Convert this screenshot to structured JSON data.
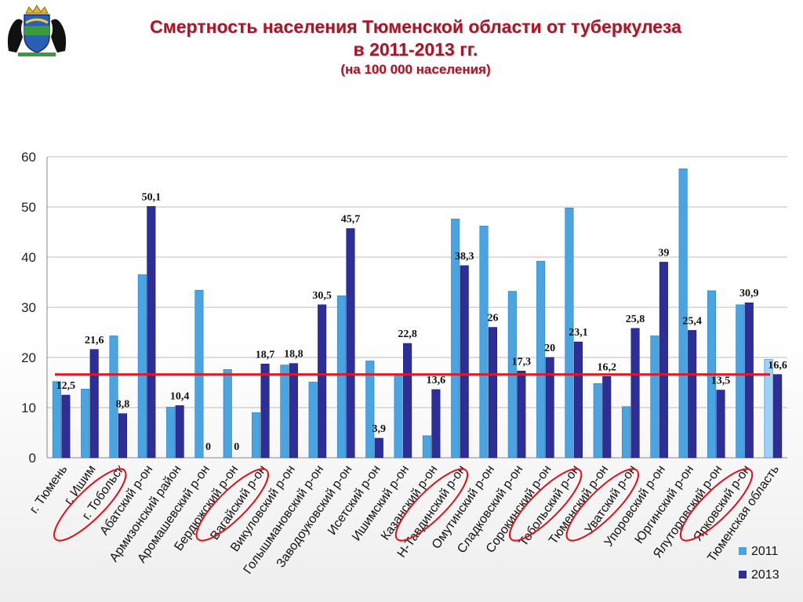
{
  "header": {
    "title_line1": "Смертность населения Тюменской области от туберкулеза",
    "title_line2": "в 2011-2013 гг.",
    "subtitle": "(на 100 000 населения)"
  },
  "emblem": {
    "icon": "tyumen-region-coat-of-arms"
  },
  "colors": {
    "series_2011": "#4ba3e0",
    "series_2013": "#2e2f96",
    "highlight_2011": "#9fd0f5",
    "average_line": "#e8141e",
    "highlight_circle": "#d9141e",
    "average_label": "#c0141e"
  },
  "chart_data": {
    "type": "bar",
    "categories": [
      "г. Тюмень",
      "г. Ишим",
      "г. Тобольск",
      "Абатский р-он",
      "Армизонский район",
      "Аромашевский р-он",
      "Бердюжский р-он",
      "Вагайский р-он",
      "Викуловский р-он",
      "Голышмановский р-он",
      "Заводоуковский р-он",
      "Исетский р-он",
      "Ишимский р-он",
      "Казанский р-он",
      "Н-Тавдинский р-он",
      "Омутинский р-он",
      "Сладковский р-он",
      "Сорокинский р-он",
      "Тобольский р-он",
      "Тюменский р-он",
      "Уватский р-он",
      "Упоровский р-он",
      "Юргинский р-он",
      "Ялуторовский р-он",
      "Ярковский р-он",
      "Тюменская область"
    ],
    "series": [
      {
        "name": "2011",
        "values": [
          15.2,
          13.7,
          24.3,
          36.5,
          10.1,
          33.4,
          17.6,
          9.0,
          18.5,
          15.1,
          32.3,
          19.3,
          16.3,
          4.4,
          47.6,
          46.2,
          33.2,
          39.2,
          49.8,
          14.8,
          10.2,
          24.3,
          57.6,
          33.3,
          30.5,
          19.6
        ]
      },
      {
        "name": "2013",
        "values": [
          12.5,
          21.6,
          8.8,
          50.1,
          10.4,
          0,
          0,
          18.7,
          18.8,
          30.5,
          45.7,
          3.9,
          22.8,
          13.6,
          38.3,
          26,
          17.3,
          20,
          23.1,
          16.2,
          25.8,
          39,
          25.4,
          13.5,
          30.9,
          16.6
        ]
      }
    ],
    "data_labels_2013": [
      "12,5",
      "21,6",
      "8,8",
      "50,1",
      "10,4",
      "0",
      "0",
      "18,7",
      "18,8",
      "30,5",
      "45,7",
      "3,9",
      "22,8",
      "13,6",
      "38,3",
      "26",
      "17,3",
      "20",
      "23,1",
      "16,2",
      "25,8",
      "39",
      "25,4",
      "13,5",
      "30,9",
      "16,6"
    ],
    "y_ticks": [
      "0",
      "10",
      "20",
      "30",
      "40",
      "50",
      "60"
    ],
    "ylim": [
      0,
      60
    ],
    "reference_line": {
      "value": 16.6
    },
    "highlighted_categories": [
      "г. Тобольск",
      "Вагайский р-он",
      "Н-Тавдинский р-он",
      "Тобольский р-он",
      "Уватский р-он",
      "Ярковский р-он"
    ],
    "highlighted_last_category": "Тюменская область",
    "grid": true,
    "legend": {
      "position": "bottom-right",
      "entries": [
        "2011",
        "2013"
      ]
    }
  }
}
